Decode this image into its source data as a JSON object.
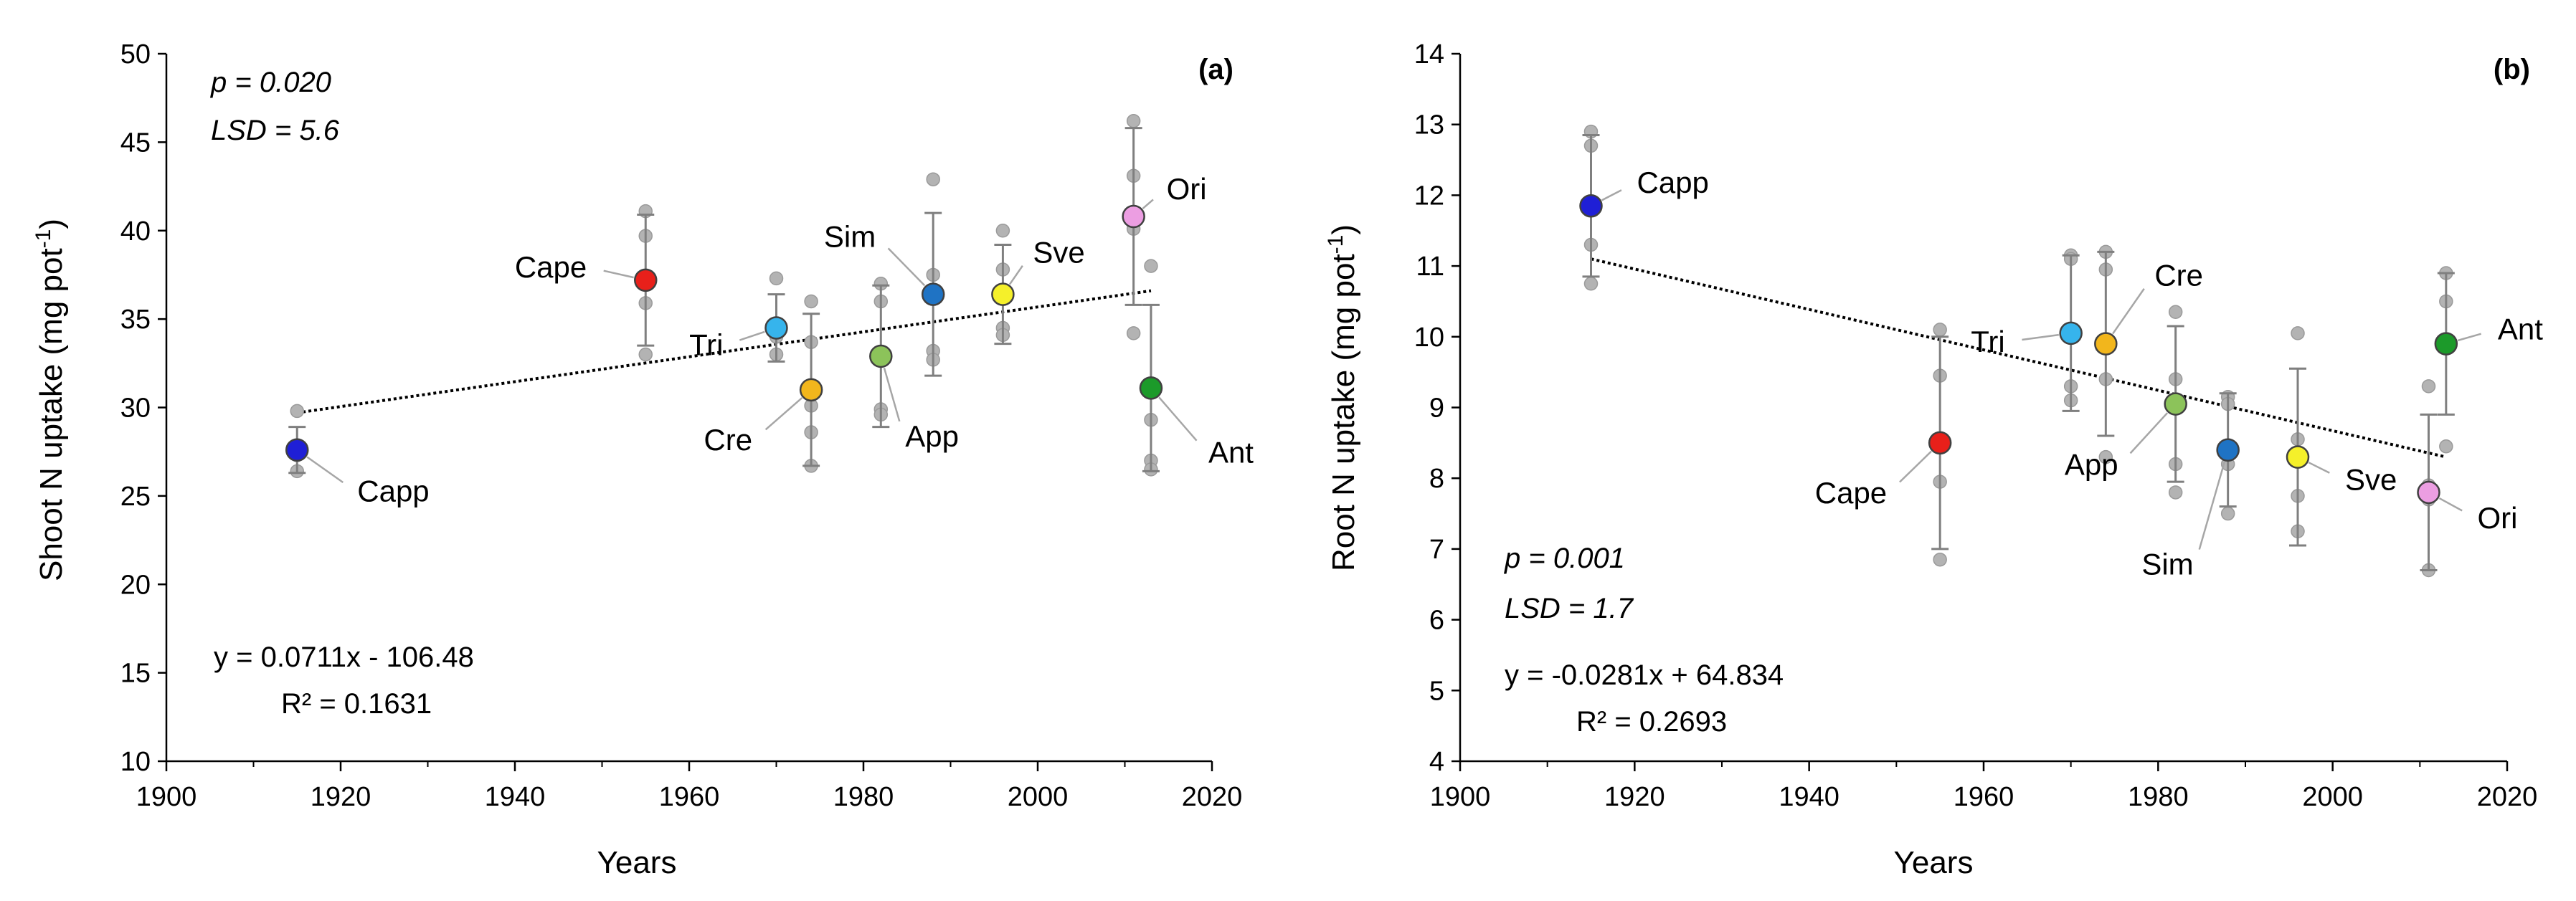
{
  "chart_data": [
    {
      "type": "scatter",
      "panel": "(a)",
      "ylabel": "Shoot N uptake (mg pot",
      "ylabel_sup": "-1",
      "ylabel_end": ")",
      "xlabel": "Years",
      "xlim": [
        1900,
        2020
      ],
      "ylim": [
        10,
        50
      ],
      "xticks": [
        1900,
        1920,
        1940,
        1960,
        1980,
        2000,
        2020
      ],
      "yticks": [
        10,
        15,
        20,
        25,
        30,
        35,
        40,
        45,
        50
      ],
      "p_text": "p = 0.020",
      "lsd_text": "LSD = 5.6",
      "equation": "y = 0.0711x - 106.48",
      "r2": "R² = 0.1631",
      "trend": {
        "x": [
          1915,
          2013
        ],
        "y": [
          29.7,
          36.6
        ]
      },
      "cultivars": [
        {
          "label": "Capp",
          "year": 1915,
          "mean": 27.6,
          "err": 1.3,
          "color": "#1f1fd6",
          "reps": [
            29.8,
            27.8,
            27.3,
            26.4
          ]
        },
        {
          "label": "Cape",
          "year": 1955,
          "mean": 37.2,
          "err": 3.7,
          "color": "#e8201a",
          "reps": [
            41.1,
            39.7,
            35.9,
            33.0
          ]
        },
        {
          "label": "Tri",
          "year": 1970,
          "mean": 34.5,
          "err": 1.9,
          "color": "#36b4ec",
          "reps": [
            37.3,
            34.0,
            33.0
          ]
        },
        {
          "label": "Cre",
          "year": 1974,
          "mean": 31.0,
          "err": 4.3,
          "color": "#f2b61c",
          "reps": [
            36.0,
            33.7,
            30.1,
            28.6,
            26.7
          ]
        },
        {
          "label": "App",
          "year": 1982,
          "mean": 32.9,
          "err": 4.0,
          "color": "#8cc35a",
          "reps": [
            37.0,
            36.0,
            33.0,
            29.9,
            29.6
          ]
        },
        {
          "label": "Sim",
          "year": 1988,
          "mean": 36.4,
          "err": 4.6,
          "color": "#1f73c4",
          "reps": [
            42.9,
            37.5,
            36.5,
            33.2,
            32.7
          ]
        },
        {
          "label": "Sve",
          "year": 1996,
          "mean": 36.4,
          "err": 2.8,
          "color": "#f5f02a",
          "reps": [
            40.0,
            37.8,
            36.4,
            34.5,
            34.1
          ]
        },
        {
          "label": "Ori",
          "year": 2011,
          "mean": 40.8,
          "err": 5.0,
          "color": "#ec9ee2",
          "reps": [
            46.2,
            43.1,
            40.1,
            34.2
          ]
        },
        {
          "label": "Ant",
          "year": 2013,
          "mean": 31.1,
          "err": 4.7,
          "color": "#1c9a2a",
          "reps": [
            38.0,
            31.3,
            29.3,
            27.0,
            26.5
          ]
        }
      ]
    },
    {
      "type": "scatter",
      "panel": "(b)",
      "ylabel": "Root N uptake (mg pot",
      "ylabel_sup": "-1",
      "ylabel_end": ")",
      "xlabel": "Years",
      "xlim": [
        1900,
        2020
      ],
      "ylim": [
        4,
        14
      ],
      "xticks": [
        1900,
        1920,
        1940,
        1960,
        1980,
        2000,
        2020
      ],
      "yticks": [
        4,
        5,
        6,
        7,
        8,
        9,
        10,
        11,
        12,
        13,
        14
      ],
      "p_text": "p = 0.001",
      "lsd_text": "LSD = 1.7",
      "equation": "y = -0.0281x + 64.834",
      "r2": "R² = 0.2693",
      "trend": {
        "x": [
          1915,
          2013
        ],
        "y": [
          11.1,
          8.3
        ]
      },
      "cultivars": [
        {
          "label": "Capp",
          "year": 1915,
          "mean": 11.85,
          "err": 1.0,
          "color": "#1f1fd6",
          "reps": [
            12.9,
            12.7,
            11.3,
            10.75
          ]
        },
        {
          "label": "Cape",
          "year": 1955,
          "mean": 8.5,
          "err": 1.5,
          "color": "#e8201a",
          "reps": [
            10.1,
            9.45,
            7.95,
            6.85
          ]
        },
        {
          "label": "Tri",
          "year": 1970,
          "mean": 10.05,
          "err": 1.1,
          "color": "#36b4ec",
          "reps": [
            11.15,
            11.1,
            9.3,
            9.1
          ]
        },
        {
          "label": "Cre",
          "year": 1974,
          "mean": 9.9,
          "err": 1.3,
          "color": "#f2b61c",
          "reps": [
            11.2,
            10.95,
            9.4,
            8.3
          ]
        },
        {
          "label": "App",
          "year": 1982,
          "mean": 9.05,
          "err": 1.1,
          "color": "#8cc35a",
          "reps": [
            10.35,
            9.4,
            8.2,
            7.8
          ]
        },
        {
          "label": "Sim",
          "year": 1988,
          "mean": 8.4,
          "err": 0.8,
          "color": "#1f73c4",
          "reps": [
            9.15,
            9.05,
            8.2,
            7.5
          ]
        },
        {
          "label": "Sve",
          "year": 1996,
          "mean": 8.3,
          "err": 1.25,
          "color": "#f5f02a",
          "reps": [
            10.05,
            8.55,
            7.75,
            7.25
          ]
        },
        {
          "label": "Ori",
          "year": 2011,
          "mean": 7.8,
          "err": 1.1,
          "color": "#ec9ee2",
          "reps": [
            9.3,
            7.9,
            7.7,
            6.7
          ]
        },
        {
          "label": "Ant",
          "year": 2013,
          "mean": 9.9,
          "err": 1.0,
          "color": "#1c9a2a",
          "reps": [
            10.9,
            10.5,
            8.45
          ]
        }
      ]
    }
  ]
}
